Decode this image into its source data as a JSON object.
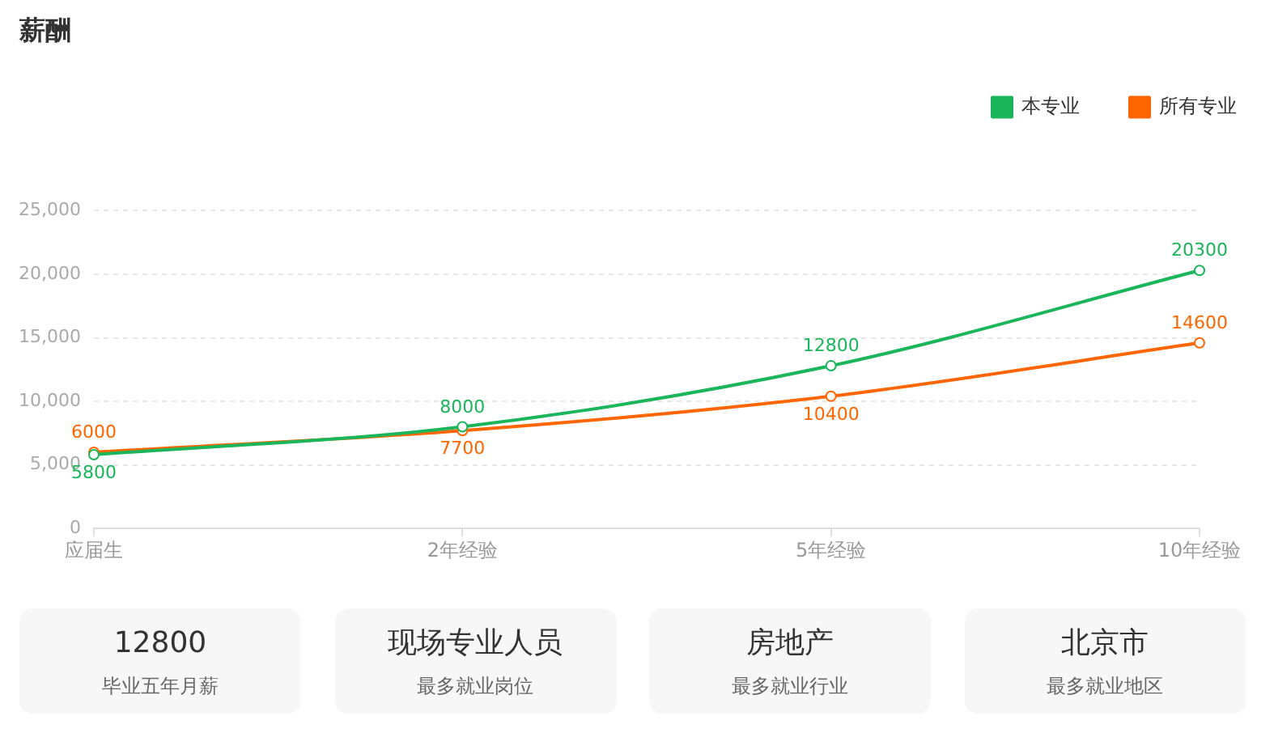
{
  "chart_data": [
    {
      "type": "line",
      "title": "薪酬",
      "categories": [
        "应届生",
        "2年经验",
        "5年经验",
        "10年经验"
      ],
      "series": [
        {
          "name": "本专业",
          "color": "#1bb55c",
          "values": [
            5800,
            8000,
            12800,
            20300
          ]
        },
        {
          "name": "所有专业",
          "color": "#ff6600",
          "values": [
            6000,
            7700,
            10400,
            14600
          ]
        }
      ],
      "ylim": [
        0,
        25000
      ],
      "yticks": [
        0,
        {
          "value": 5000,
          "label": "5,000"
        },
        {
          "value": 10000,
          "label": "10,000"
        },
        {
          "value": 15000,
          "label": "15,000"
        },
        {
          "value": 20000,
          "label": "20,000"
        },
        {
          "value": 25000,
          "label": "25,000"
        }
      ],
      "grid": "y",
      "legend": "top right",
      "marker": "circle",
      "data_labels": true
    },
    {
      "type": "other",
      "title": "12800",
      "subtitle": "毕业五年月薪"
    },
    {
      "type": "other",
      "title": "现场专业人员",
      "subtitle": "最多就业岗位"
    },
    {
      "type": "other",
      "title": "房地产",
      "subtitle": "最多就业行业"
    },
    {
      "type": "other",
      "title": "北京市",
      "subtitle": "最多就业地区"
    }
  ]
}
